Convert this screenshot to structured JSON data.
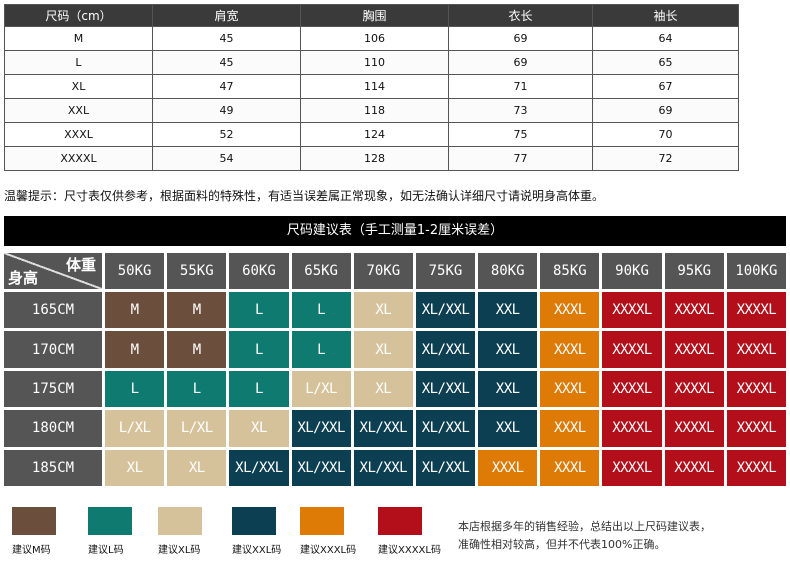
{
  "size_table": {
    "headers": [
      "尺码（cm）",
      "肩宽",
      "胸围",
      "衣长",
      "袖长"
    ],
    "rows": [
      [
        "M",
        "45",
        "106",
        "69",
        "64"
      ],
      [
        "L",
        "45",
        "110",
        "69",
        "65"
      ],
      [
        "XL",
        "47",
        "114",
        "71",
        "67"
      ],
      [
        "XXL",
        "49",
        "118",
        "73",
        "69"
      ],
      [
        "XXXL",
        "52",
        "124",
        "75",
        "70"
      ],
      [
        "XXXXL",
        "54",
        "128",
        "77",
        "72"
      ]
    ]
  },
  "tip": "温馨提示：尺寸表仅供参考，根据面料的特殊性，有适当误差属正常现象，如无法确认详细尺寸请说明身高体重。",
  "recommendation": {
    "title": "尺码建议表（手工测量1-2厘米误差）",
    "corner_weight": "体重",
    "corner_height": "身高",
    "weights": [
      "50KG",
      "55KG",
      "60KG",
      "65KG",
      "70KG",
      "75KG",
      "80KG",
      "85KG",
      "90KG",
      "95KG",
      "100KG"
    ],
    "heights": [
      "165CM",
      "170CM",
      "175CM",
      "180CM",
      "185CM"
    ],
    "grid": [
      [
        "M",
        "M",
        "L",
        "L",
        "XL",
        "XL/XXL",
        "XXL",
        "XXXL",
        "XXXXL",
        "XXXXL",
        "XXXXL"
      ],
      [
        "M",
        "M",
        "L",
        "L",
        "XL",
        "XL/XXL",
        "XXL",
        "XXXL",
        "XXXXL",
        "XXXXL",
        "XXXXL"
      ],
      [
        "L",
        "L",
        "L",
        "L/XL",
        "XL",
        "XL/XXL",
        "XXL",
        "XXXL",
        "XXXXL",
        "XXXXL",
        "XXXXL"
      ],
      [
        "L/XL",
        "L/XL",
        "XL",
        "XL/XXL",
        "XL/XXL",
        "XL/XXL",
        "XXL",
        "XXXL",
        "XXXXL",
        "XXXXL",
        "XXXXL"
      ],
      [
        "XL",
        "XL",
        "XL/XXL",
        "XL/XXL",
        "XL/XXL",
        "XL/XXL",
        "XXXL",
        "XXXL",
        "XXXXL",
        "XXXXL",
        "XXXXL"
      ]
    ],
    "cell_colors": [
      [
        "brown",
        "brown",
        "teal",
        "teal",
        "tan",
        "navy",
        "navy",
        "orange",
        "red",
        "red",
        "red"
      ],
      [
        "brown",
        "brown",
        "teal",
        "teal",
        "tan",
        "navy",
        "navy",
        "orange",
        "red",
        "red",
        "red"
      ],
      [
        "teal",
        "teal",
        "teal",
        "tan",
        "tan",
        "navy",
        "navy",
        "orange",
        "red",
        "red",
        "red"
      ],
      [
        "tan",
        "tan",
        "tan",
        "navy",
        "navy",
        "navy",
        "navy",
        "orange",
        "red",
        "red",
        "red"
      ],
      [
        "tan",
        "tan",
        "navy",
        "navy",
        "navy",
        "navy",
        "orange",
        "orange",
        "red",
        "red",
        "red"
      ]
    ],
    "palette": {
      "brown": "#6b4f3c",
      "teal": "#0e7a70",
      "tan": "#d6c29a",
      "navy": "#0d3f52",
      "orange": "#de7b06",
      "red": "#b30f1a"
    }
  },
  "legend": [
    {
      "label": "建议M码",
      "color": "#6b4f3c"
    },
    {
      "label": "建议L码",
      "color": "#0e7a70"
    },
    {
      "label": "建议XL码",
      "color": "#d6c29a"
    },
    {
      "label": "建议XXL码",
      "color": "#0d3f52"
    },
    {
      "label": "建议XXXL码",
      "color": "#de7b06"
    },
    {
      "label": "建议XXXXL码",
      "color": "#b30f1a"
    }
  ],
  "note": {
    "line1": "本店根据多年的销售经验，总结出以上尺码建议表，",
    "line2": "准确性相对较高，但并不代表100%正确。"
  }
}
